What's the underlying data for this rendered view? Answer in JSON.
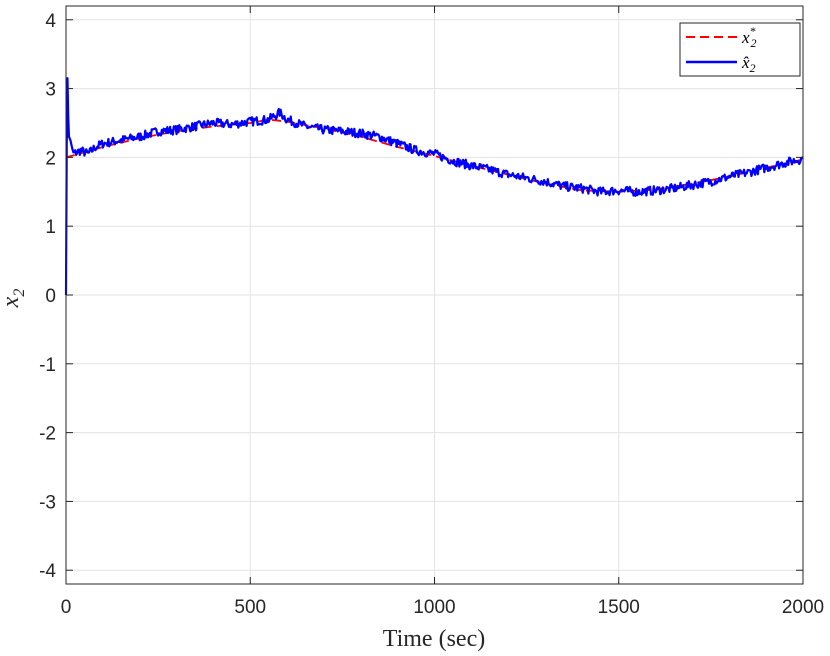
{
  "chart_data": {
    "type": "line",
    "title": "",
    "xlabel": "Time (sec)",
    "ylabel": "x",
    "ylabel_subscript": "2",
    "xlim": [
      0,
      2000
    ],
    "ylim": [
      -4.2,
      4.2
    ],
    "xticks": [
      0,
      500,
      1000,
      1500,
      2000
    ],
    "yticks": [
      -4,
      -3,
      -2,
      -1,
      0,
      1,
      2,
      3,
      4
    ],
    "xtick_labels": [
      "0",
      "500",
      "1000",
      "1500",
      "2000"
    ],
    "ytick_labels": [
      "-4",
      "-3",
      "-2",
      "-1",
      "0",
      "1",
      "2",
      "3",
      "4"
    ],
    "grid": true,
    "legend_position": "top-right",
    "series": [
      {
        "name": "x",
        "name_sub": "2",
        "name_sup": "*",
        "style": "dashed",
        "color": "#ff0000",
        "x": [
          0,
          100,
          200,
          300,
          400,
          500,
          550,
          600,
          700,
          800,
          900,
          1000,
          1100,
          1200,
          1300,
          1400,
          1500,
          1600,
          1700,
          1800,
          1900,
          2000
        ],
        "y": [
          2.0,
          2.15,
          2.28,
          2.38,
          2.45,
          2.5,
          2.55,
          2.52,
          2.42,
          2.3,
          2.15,
          2.02,
          1.88,
          1.75,
          1.62,
          1.52,
          1.5,
          1.53,
          1.62,
          1.72,
          1.85,
          1.97
        ]
      },
      {
        "name": "x̂",
        "name_sub": "2",
        "name_sup": "",
        "style": "solid",
        "color": "#0000ff",
        "x": [
          0,
          1,
          2,
          4,
          6,
          8,
          12,
          20,
          40,
          60,
          80,
          100,
          150,
          200,
          250,
          300,
          350,
          400,
          450,
          500,
          550,
          580,
          600,
          650,
          700,
          750,
          800,
          850,
          900,
          950,
          1000,
          1050,
          1100,
          1150,
          1200,
          1250,
          1300,
          1350,
          1400,
          1450,
          1500,
          1550,
          1600,
          1650,
          1700,
          1750,
          1800,
          1850,
          1900,
          1950,
          2000
        ],
        "y": [
          0.0,
          1.1,
          2.2,
          3.15,
          2.6,
          2.3,
          2.25,
          2.05,
          2.1,
          2.05,
          2.15,
          2.2,
          2.25,
          2.3,
          2.38,
          2.4,
          2.45,
          2.5,
          2.48,
          2.52,
          2.55,
          2.65,
          2.55,
          2.45,
          2.4,
          2.38,
          2.35,
          2.3,
          2.2,
          2.1,
          2.05,
          1.95,
          1.88,
          1.82,
          1.75,
          1.7,
          1.65,
          1.58,
          1.55,
          1.5,
          1.52,
          1.5,
          1.52,
          1.55,
          1.6,
          1.65,
          1.72,
          1.78,
          1.85,
          1.92,
          1.98
        ]
      }
    ]
  }
}
